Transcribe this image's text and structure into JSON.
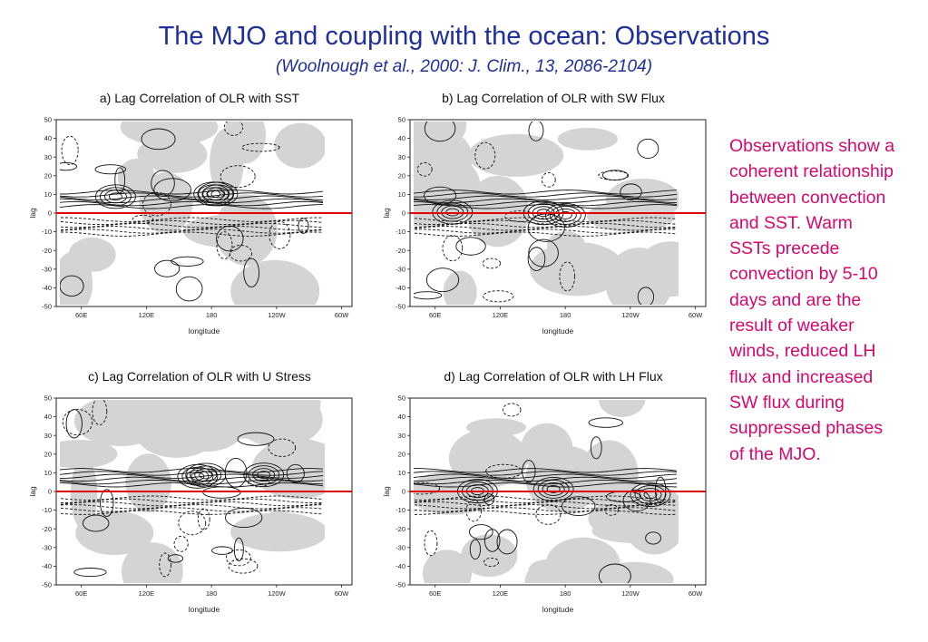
{
  "slide": {
    "title": "The MJO and coupling with the ocean: Observations",
    "subtitle": "(Woolnough et al., 2000: J. Clim., 13, 2086-2104)",
    "side_text": "Observations show a coherent relationship between convection  and SST. Warm SSTs precede convection by 5-10 days and are the result of weaker winds, reduced LH flux and increased SW flux during suppressed phases of the MJO.",
    "colors": {
      "title": "#1f2f9c",
      "side_text": "#d4086f",
      "zero_line": "#e00000",
      "shading": "#d4d4d4"
    }
  },
  "panels": [
    {
      "title": "a) Lag Correlation of OLR with SST"
    },
    {
      "title": "b) Lag Correlation of OLR with SW Flux"
    },
    {
      "title": "c) Lag Correlation of OLR with U Stress"
    },
    {
      "title": "d) Lag Correlation of OLR with LH Flux"
    }
  ],
  "axes": {
    "ylabel": "lag",
    "xlabel": "longitude",
    "yticks": [
      "50",
      "40",
      "30",
      "20",
      "10",
      "0",
      "-10",
      "-20",
      "-30",
      "-40",
      "-50"
    ],
    "xticks": [
      "60E",
      "120E",
      "180",
      "120W",
      "60W"
    ]
  }
}
